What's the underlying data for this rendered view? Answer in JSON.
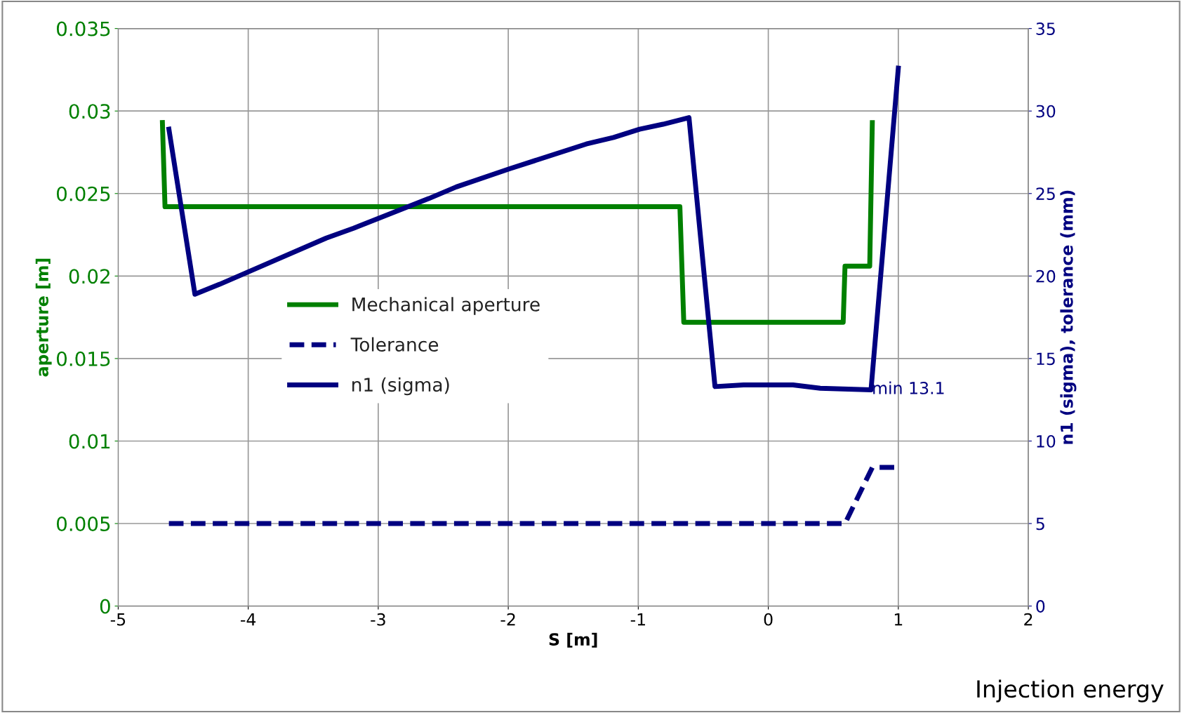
{
  "chart_data": {
    "type": "line",
    "xlabel": "S [m]",
    "ylabel": "aperture [m]",
    "y2label": "n1 (sigma), tolerance (mm)",
    "xlim": [
      -5,
      2
    ],
    "xticks": [
      -5,
      -4,
      -3,
      -2,
      -1,
      0,
      1,
      2
    ],
    "ylim": [
      0,
      0.035
    ],
    "yticks": [
      0,
      0.005,
      0.01,
      0.015,
      0.02,
      0.025,
      0.03,
      0.035
    ],
    "y2lim": [
      0,
      35
    ],
    "y2ticks": [
      0,
      5,
      10,
      15,
      20,
      25,
      30,
      35
    ],
    "grid": true,
    "legend": "center left",
    "series": [
      {
        "name": "Mechanical aperture",
        "color": "#008000",
        "line_style": "solid",
        "x": [
          -4.66,
          -4.64,
          -0.68,
          -0.65,
          0.576,
          0.59,
          0.78,
          0.8
        ],
        "values": [
          0.0293,
          0.0242,
          0.0242,
          0.0172,
          0.0172,
          0.0206,
          0.0206,
          0.0293
        ]
      },
      {
        "name": "Tolerance",
        "color": "#000080",
        "line_style": "dashed",
        "axis": "y2",
        "x": [
          -4.61,
          0.59,
          0.8,
          1.0
        ],
        "values": [
          5.0,
          5.0,
          8.4,
          8.4
        ]
      },
      {
        "name": "n1 (sigma)",
        "color": "#000080",
        "line_style": "solid",
        "axis": "y2",
        "x": [
          -4.61,
          -4.41,
          -4.22,
          -3.4,
          -3.19,
          -2.61,
          -2.4,
          -1.99,
          -1.4,
          -1.19,
          -0.99,
          -0.81,
          -0.61,
          -0.41,
          -0.19,
          0.19,
          0.4,
          0.79,
          1.0
        ],
        "values": [
          28.9,
          18.9,
          19.5,
          22.3,
          22.9,
          24.7,
          25.4,
          26.5,
          28.0,
          28.4,
          28.9,
          29.2,
          29.6,
          13.3,
          13.4,
          13.4,
          13.2,
          13.1,
          32.6
        ]
      }
    ],
    "annotations": [
      "min 13.1",
      "Injection energy"
    ]
  }
}
